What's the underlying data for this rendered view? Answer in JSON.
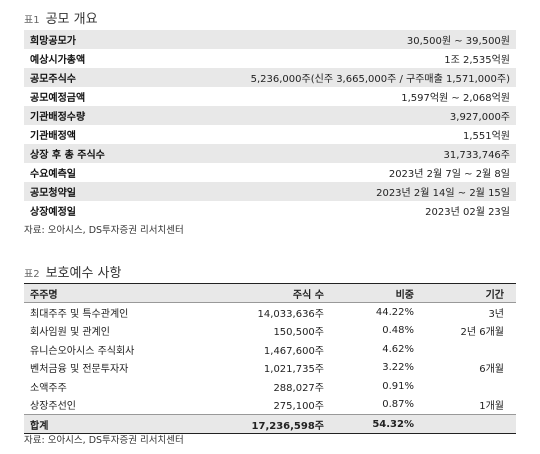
{
  "table1": {
    "number": "표1",
    "title": "공모 개요",
    "rows": [
      {
        "key": "희망공모가",
        "value": "30,500원 ~ 39,500원"
      },
      {
        "key": "예상시가총액",
        "value": "1조 2,535억원"
      },
      {
        "key": "공모주식수",
        "value": "5,236,000주(신주 3,665,000주 / 구주매출 1,571,000주)"
      },
      {
        "key": "공모예정금액",
        "value": "1,597억원 ~ 2,068억원"
      },
      {
        "key": "기관배정수량",
        "value": "3,927,000주"
      },
      {
        "key": "기관배정액",
        "value": "1,551억원"
      },
      {
        "key": "상장 후 총 주식수",
        "value": "31,733,746주"
      },
      {
        "key": "수요예측일",
        "value": "2023년 2월 7일 ~ 2월 8일"
      },
      {
        "key": "공모청약일",
        "value": "2023년 2월 14일 ~ 2월 15일"
      },
      {
        "key": "상장예정일",
        "value": "2023년 02월 23일"
      }
    ],
    "source": "자료: 오아시스, DS투자증권 리서치센터"
  },
  "table2": {
    "number": "표2",
    "title": "보호예수 사항",
    "headers": [
      "주주명",
      "주식 수",
      "비중",
      "기간"
    ],
    "rows": [
      {
        "name": "최대주주 및 특수관계인",
        "shares": "14,033,636주",
        "ratio": "44.22%",
        "period": "3년"
      },
      {
        "name": "회사임원 및 관계인",
        "shares": "150,500주",
        "ratio": "0.48%",
        "period": "2년 6개월"
      },
      {
        "name": "유니슨오아시스 주식회사",
        "shares": "1,467,600주",
        "ratio": "4.62%",
        "period": ""
      },
      {
        "name": "벤처금융 및 전문투자자",
        "shares": "1,021,735주",
        "ratio": "3.22%",
        "period": "6개월"
      },
      {
        "name": "소액주주",
        "shares": "288,027주",
        "ratio": "0.91%",
        "period": ""
      },
      {
        "name": "상장주선인",
        "shares": "275,100주",
        "ratio": "0.87%",
        "period": "1개월"
      }
    ],
    "total": {
      "name": "합계",
      "shares": "17,236,598주",
      "ratio": "54.32%",
      "period": ""
    },
    "source": "자료: 오아시스, DS투자증권 리서치센터"
  }
}
